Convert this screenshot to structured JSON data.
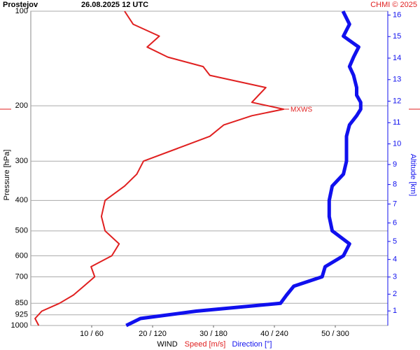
{
  "chart_data": {
    "type": "line",
    "title": "Prostejov",
    "subtitle": "26.08.2025 12 UTC",
    "credit": "CHMI © 2025",
    "ylabel": "Pressure [hPa]",
    "y2label": "Altitude [km]",
    "xlabel": "WIND",
    "annotation": {
      "text": "MXWS",
      "pressure": 205,
      "speed": 41.5
    },
    "y": [
      100,
      110,
      120,
      130,
      140,
      150,
      160,
      175,
      185,
      195,
      205,
      215,
      230,
      250,
      270,
      300,
      330,
      360,
      400,
      450,
      500,
      550,
      600,
      650,
      700,
      750,
      800,
      850,
      900,
      950,
      1000
    ],
    "series": [
      {
        "name": "Speed [m/s]",
        "color": "#e02020",
        "values": [
          15.4,
          16.8,
          21.1,
          19.1,
          22.5,
          28.3,
          29.4,
          38.6,
          37.4,
          36.3,
          41.5,
          36.3,
          31.7,
          29.4,
          24.8,
          18.5,
          17.4,
          15.4,
          12.2,
          11.6,
          12.2,
          14.5,
          13.3,
          9.9,
          10.5,
          8.7,
          7.0,
          4.7,
          1.8,
          0.7,
          1.3
        ]
      },
      {
        "name": "Direction [°]",
        "color": "#1010ee",
        "axis": "x2",
        "values": [
          307.6,
          314,
          308,
          323,
          318,
          314,
          318,
          321,
          321,
          325,
          325,
          321,
          314,
          311,
          311,
          311,
          308,
          297,
          294,
          294,
          297,
          314,
          308,
          290,
          287,
          259,
          252,
          246,
          163,
          108,
          94
        ]
      }
    ],
    "ylim": [
      1000,
      100
    ],
    "log_y": true,
    "yticks": [
      100,
      200,
      300,
      400,
      500,
      600,
      700,
      850,
      925,
      1000
    ],
    "xlim": [
      0,
      60
    ],
    "x2lim": [
      0,
      360
    ],
    "xticks": [
      {
        "value": 10,
        "label": "10 / 60"
      },
      {
        "value": 20,
        "label": "20 / 120"
      },
      {
        "value": 30,
        "label": "30 / 180"
      },
      {
        "value": 40,
        "label": "40 / 240"
      },
      {
        "value": 50,
        "label": "50 / 300"
      }
    ],
    "y2ticks": [
      1,
      2,
      3,
      4,
      5,
      6,
      7,
      8,
      9,
      10,
      11,
      12,
      13,
      14,
      15,
      16
    ],
    "grid": true
  }
}
